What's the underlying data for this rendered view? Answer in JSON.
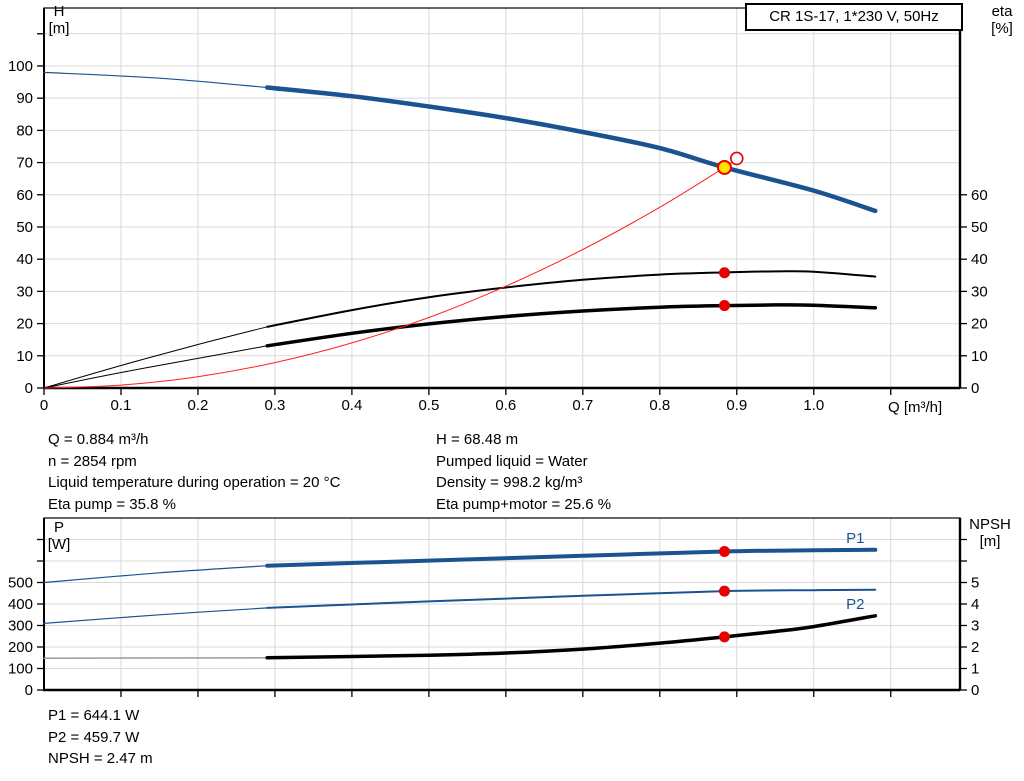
{
  "title_box": "CR 1S-17, 1*230 V, 50Hz",
  "colors": {
    "curve_blue": "#1b5390",
    "line_red": "#ff2020",
    "marker_red": "#e60000",
    "marker_yellow": "#ffe100",
    "curve_black": "#000000",
    "curve_gray": "#9a9a9a",
    "grid": "#d9d9d9",
    "axis": "#000000"
  },
  "info_top_left": [
    "Q = 0.884 m³/h",
    "n = 2854 rpm",
    "Liquid temperature during operation = 20 °C",
    "Eta pump = 35.8 %"
  ],
  "info_top_right": [
    "H = 68.48 m",
    "Pumped liquid = Water",
    "Density = 998.2 kg/m³",
    "Eta pump+motor = 25.6 %"
  ],
  "info_bottom": [
    "P1 = 644.1 W",
    "P2 = 459.7 W",
    "NPSH = 2.47 m"
  ],
  "chart_data": [
    {
      "type": "line",
      "title": "CR 1S-17, 1*230 V, 50Hz",
      "xlabel": "Q [m³/h]",
      "ylabel": "H [m]",
      "ylabel_right": "eta [%]",
      "ylabel_lines": [
        "H",
        "[m]"
      ],
      "ylabel_right_lines": [
        "eta",
        "[%]"
      ],
      "xlim": [
        0,
        1.19
      ],
      "ylim": [
        0,
        118
      ],
      "legend": "none",
      "grid": true,
      "x_ticks": [
        {
          "v": 0,
          "label": "0"
        },
        {
          "v": 0.1,
          "label": "0.1"
        },
        {
          "v": 0.2,
          "label": "0.2"
        },
        {
          "v": 0.3,
          "label": "0.3"
        },
        {
          "v": 0.4,
          "label": "0.4"
        },
        {
          "v": 0.5,
          "label": "0.5"
        },
        {
          "v": 0.6,
          "label": "0.6"
        },
        {
          "v": 0.7,
          "label": "0.7"
        },
        {
          "v": 0.8,
          "label": "0.8"
        },
        {
          "v": 0.9,
          "label": "0.9"
        },
        {
          "v": 1.0,
          "label": "1.0"
        },
        {
          "v": 1.1,
          "label": ""
        }
      ],
      "y_ticks_left": [
        {
          "v": 0,
          "label": "0"
        },
        {
          "v": 10,
          "label": "10"
        },
        {
          "v": 20,
          "label": "20"
        },
        {
          "v": 30,
          "label": "30"
        },
        {
          "v": 40,
          "label": "40"
        },
        {
          "v": 50,
          "label": "50"
        },
        {
          "v": 60,
          "label": "60"
        },
        {
          "v": 70,
          "label": "70"
        },
        {
          "v": 80,
          "label": "80"
        },
        {
          "v": 90,
          "label": "90"
        },
        {
          "v": 100,
          "label": "100"
        },
        {
          "v": 110,
          "label": ""
        }
      ],
      "y_ticks_right": [
        {
          "v": 0,
          "label": "0"
        },
        {
          "v": 10,
          "label": "10"
        },
        {
          "v": 20,
          "label": "20"
        },
        {
          "v": 30,
          "label": "30"
        },
        {
          "v": 40,
          "label": "40"
        },
        {
          "v": 50,
          "label": "50"
        },
        {
          "v": 60,
          "label": "60"
        }
      ],
      "series": [
        {
          "name": "head-curve-min-flow",
          "color": "curve_blue",
          "width": 1.2,
          "points": [
            [
              0,
              98
            ],
            [
              0.15,
              96.2
            ],
            [
              0.29,
              93.3
            ]
          ]
        },
        {
          "name": "head-curve",
          "color": "curve_blue",
          "width": 4.5,
          "points": [
            [
              0.29,
              93.3
            ],
            [
              0.4,
              90.6
            ],
            [
              0.5,
              87.4
            ],
            [
              0.6,
              83.8
            ],
            [
              0.7,
              79.5
            ],
            [
              0.8,
              74.5
            ],
            [
              0.884,
              68.5
            ],
            [
              1.0,
              61.3
            ],
            [
              1.08,
              55
            ]
          ]
        },
        {
          "name": "eta-pump-min-flow",
          "color": "curve_black",
          "width": 1,
          "points": [
            [
              0,
              0
            ],
            [
              0.1,
              7
            ],
            [
              0.2,
              13.5
            ],
            [
              0.29,
              19
            ]
          ]
        },
        {
          "name": "eta-pump-curve",
          "color": "curve_black",
          "width": 2,
          "points": [
            [
              0.29,
              19
            ],
            [
              0.4,
              24.2
            ],
            [
              0.5,
              28.2
            ],
            [
              0.6,
              31.2
            ],
            [
              0.7,
              33.6
            ],
            [
              0.8,
              35.2
            ],
            [
              0.884,
              35.9
            ],
            [
              0.95,
              36.2
            ],
            [
              1.0,
              36.1
            ],
            [
              1.08,
              34.6
            ]
          ]
        },
        {
          "name": "eta-pump-motor-min-flow",
          "color": "curve_black",
          "width": 1,
          "points": [
            [
              0,
              0
            ],
            [
              0.1,
              4.8
            ],
            [
              0.2,
              9.2
            ],
            [
              0.29,
              13.1
            ]
          ]
        },
        {
          "name": "eta-pump-motor-curve",
          "color": "curve_black",
          "width": 3.5,
          "points": [
            [
              0.29,
              13.1
            ],
            [
              0.4,
              17
            ],
            [
              0.5,
              19.9
            ],
            [
              0.6,
              22.2
            ],
            [
              0.7,
              23.9
            ],
            [
              0.8,
              25.1
            ],
            [
              0.884,
              25.6
            ],
            [
              0.95,
              25.8
            ],
            [
              1.0,
              25.7
            ],
            [
              1.08,
              24.9
            ]
          ]
        },
        {
          "name": "system-curve",
          "color": "line_red",
          "width": 1,
          "points": [
            [
              0,
              0
            ],
            [
              0.1,
              0.9
            ],
            [
              0.2,
              3.5
            ],
            [
              0.3,
              7.9
            ],
            [
              0.4,
              14.0
            ],
            [
              0.5,
              21.9
            ],
            [
              0.6,
              31.6
            ],
            [
              0.7,
              43.0
            ],
            [
              0.8,
              56.1
            ],
            [
              0.884,
              68.5
            ],
            [
              0.9,
              71.0
            ]
          ]
        }
      ],
      "markers": [
        {
          "name": "requested-duty-point",
          "x": 0.9,
          "y": 71.3,
          "r": 6,
          "style": "open",
          "color": "marker_red"
        },
        {
          "name": "duty-point",
          "x": 0.884,
          "y": 68.48,
          "r": 6.5,
          "style": "filled",
          "color": "marker_yellow",
          "ring": "marker_red"
        },
        {
          "name": "eta-pump-point",
          "x": 0.884,
          "y": 35.8,
          "r": 5.5,
          "style": "filled",
          "color": "marker_red"
        },
        {
          "name": "eta-pump-motor-point",
          "x": 0.884,
          "y": 25.6,
          "r": 5.5,
          "style": "filled",
          "color": "marker_red"
        }
      ],
      "curve_labels": []
    },
    {
      "type": "line",
      "title": "",
      "xlabel": "",
      "ylabel": "P [W]",
      "ylabel_right": "NPSH [m]",
      "ylabel_lines": [
        "P",
        "[W]"
      ],
      "ylabel_right_lines": [
        "NPSH",
        "[m]"
      ],
      "xlim": [
        0,
        1.19
      ],
      "ylim": [
        0,
        8
      ],
      "unit_note": "left axis unit = 100 W, right axis unit = 1 m",
      "legend": "inline",
      "grid": true,
      "x_ticks": [
        {
          "v": 0.1,
          "label": ""
        },
        {
          "v": 0.2,
          "label": ""
        },
        {
          "v": 0.3,
          "label": ""
        },
        {
          "v": 0.4,
          "label": ""
        },
        {
          "v": 0.5,
          "label": ""
        },
        {
          "v": 0.6,
          "label": ""
        },
        {
          "v": 0.7,
          "label": ""
        },
        {
          "v": 0.8,
          "label": ""
        },
        {
          "v": 0.9,
          "label": ""
        },
        {
          "v": 1.0,
          "label": ""
        },
        {
          "v": 1.1,
          "label": ""
        }
      ],
      "y_ticks_left": [
        {
          "v": 0,
          "label": "0"
        },
        {
          "v": 1,
          "label": "100"
        },
        {
          "v": 2,
          "label": "200"
        },
        {
          "v": 3,
          "label": "300"
        },
        {
          "v": 4,
          "label": "400"
        },
        {
          "v": 5,
          "label": "500"
        },
        {
          "v": 6,
          "label": ""
        },
        {
          "v": 7,
          "label": ""
        }
      ],
      "y_ticks_right": [
        {
          "v": 0,
          "label": "0"
        },
        {
          "v": 1,
          "label": "1"
        },
        {
          "v": 2,
          "label": "2"
        },
        {
          "v": 3,
          "label": "3"
        },
        {
          "v": 4,
          "label": "4"
        },
        {
          "v": 5,
          "label": "5"
        },
        {
          "v": 6,
          "label": ""
        },
        {
          "v": 7,
          "label": ""
        }
      ],
      "series": [
        {
          "name": "p1-min-flow",
          "color": "curve_blue",
          "width": 1.2,
          "points": [
            [
              0,
              5.0
            ],
            [
              0.15,
              5.45
            ],
            [
              0.29,
              5.78
            ]
          ]
        },
        {
          "name": "p1-curve",
          "color": "curve_blue",
          "width": 4,
          "points": [
            [
              0.29,
              5.78
            ],
            [
              0.5,
              6.02
            ],
            [
              0.7,
              6.24
            ],
            [
              0.884,
              6.44
            ],
            [
              1.0,
              6.5
            ],
            [
              1.08,
              6.52
            ]
          ]
        },
        {
          "name": "p2-min-flow",
          "color": "curve_blue",
          "width": 1.2,
          "points": [
            [
              0,
              3.1
            ],
            [
              0.15,
              3.5
            ],
            [
              0.29,
              3.82
            ]
          ]
        },
        {
          "name": "p2-curve",
          "color": "curve_blue",
          "width": 2,
          "points": [
            [
              0.29,
              3.82
            ],
            [
              0.5,
              4.12
            ],
            [
              0.7,
              4.38
            ],
            [
              0.884,
              4.6
            ],
            [
              1.0,
              4.64
            ],
            [
              1.08,
              4.66
            ]
          ]
        },
        {
          "name": "npsh-min-flow",
          "color": "curve_gray",
          "width": 1.5,
          "points": [
            [
              0,
              1.48
            ],
            [
              0.29,
              1.5
            ]
          ]
        },
        {
          "name": "npsh-curve",
          "color": "curve_black",
          "width": 3.5,
          "points": [
            [
              0.29,
              1.5
            ],
            [
              0.5,
              1.62
            ],
            [
              0.6,
              1.72
            ],
            [
              0.7,
              1.9
            ],
            [
              0.8,
              2.18
            ],
            [
              0.884,
              2.47
            ],
            [
              0.95,
              2.72
            ],
            [
              1.0,
              2.95
            ],
            [
              1.08,
              3.45
            ]
          ]
        }
      ],
      "markers": [
        {
          "name": "p1-point",
          "x": 0.884,
          "y": 6.44,
          "r": 5.5,
          "style": "filled",
          "color": "marker_red"
        },
        {
          "name": "p2-point",
          "x": 0.884,
          "y": 4.6,
          "r": 5.5,
          "style": "filled",
          "color": "marker_red"
        },
        {
          "name": "npsh-point",
          "x": 0.884,
          "y": 2.47,
          "r": 5.5,
          "style": "filled",
          "color": "marker_red"
        }
      ],
      "curve_labels": [
        {
          "name": "p1-curve-label",
          "text": "P1",
          "x": 1.042,
          "y": 7.07,
          "color": "curve_blue"
        },
        {
          "name": "p2-curve-label",
          "text": "P2",
          "x": 1.042,
          "y": 4.0,
          "color": "curve_blue"
        }
      ]
    }
  ]
}
